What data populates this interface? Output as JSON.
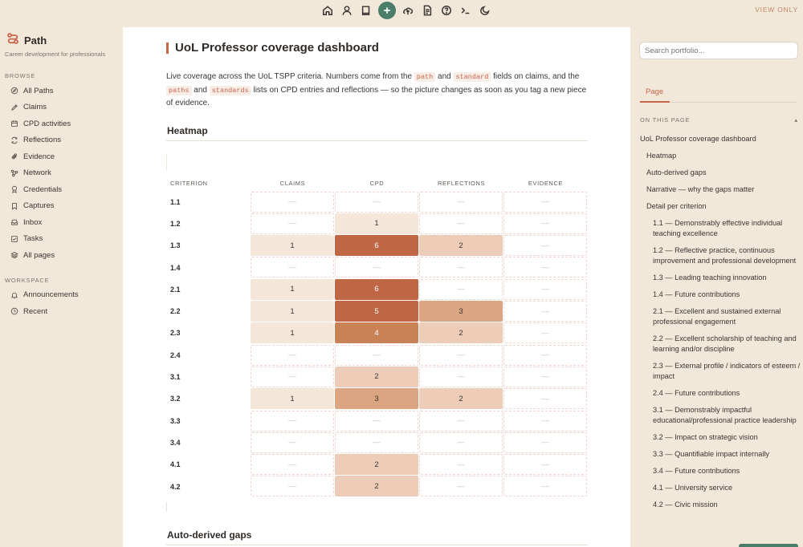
{
  "topbar": {
    "icons": [
      "home-icon",
      "user-icon",
      "book-icon",
      "plus-icon",
      "upload-icon",
      "document-icon",
      "help-icon",
      "terminal-icon",
      "moon-icon"
    ],
    "view_only": "VIEW ONLY"
  },
  "brand": {
    "name": "Path",
    "subtitle": "Career development for professionals"
  },
  "sidebar": {
    "browse_heading": "BROWSE",
    "browse": [
      {
        "label": "All Paths",
        "icon": "compass-icon"
      },
      {
        "label": "Claims",
        "icon": "pen-icon"
      },
      {
        "label": "CPD activities",
        "icon": "calendar-icon"
      },
      {
        "label": "Reflections",
        "icon": "refresh-icon"
      },
      {
        "label": "Evidence",
        "icon": "paperclip-icon"
      },
      {
        "label": "Network",
        "icon": "network-icon"
      },
      {
        "label": "Credentials",
        "icon": "award-icon"
      },
      {
        "label": "Captures",
        "icon": "bookmark-icon"
      },
      {
        "label": "Inbox",
        "icon": "inbox-icon"
      },
      {
        "label": "Tasks",
        "icon": "checkbox-icon"
      },
      {
        "label": "All pages",
        "icon": "layers-icon"
      }
    ],
    "workspace_heading": "WORKSPACE",
    "workspace": [
      {
        "label": "Announcements",
        "icon": "bell-icon"
      },
      {
        "label": "Recent",
        "icon": "clock-icon"
      }
    ]
  },
  "main": {
    "title": "UoL Professor coverage dashboard",
    "intro": {
      "t1": "Live coverage across the UoL TSPP criteria. Numbers come from the ",
      "c1": "path",
      "t2": " and ",
      "c2": "standard",
      "t3": " fields on claims, and the ",
      "c3": "paths",
      "t4": " and ",
      "c4": "standards",
      "t5": " lists on CPD entries and reflections — so the picture changes as soon as you tag a new piece of evidence."
    },
    "heatmap_heading": "Heatmap",
    "gaps_heading": "Auto-derived gaps",
    "heatmap": {
      "columns": [
        "CRITERION",
        "CLAIMS",
        "CPD",
        "REFLECTIONS",
        "EVIDENCE"
      ],
      "rows": [
        {
          "criterion": "1.1",
          "cells": [
            {
              "v": "—",
              "lvl": 0
            },
            {
              "v": "—",
              "lvl": 0
            },
            {
              "v": "—",
              "lvl": 0
            },
            {
              "v": "—",
              "lvl": 0
            }
          ]
        },
        {
          "criterion": "1.2",
          "cells": [
            {
              "v": "—",
              "lvl": 0
            },
            {
              "v": "1",
              "lvl": 1
            },
            {
              "v": "—",
              "lvl": 0
            },
            {
              "v": "—",
              "lvl": 0
            }
          ]
        },
        {
          "criterion": "1.3",
          "cells": [
            {
              "v": "1",
              "lvl": 1
            },
            {
              "v": "6",
              "lvl": 5
            },
            {
              "v": "2",
              "lvl": 2
            },
            {
              "v": "—",
              "lvl": 0
            }
          ]
        },
        {
          "criterion": "1.4",
          "cells": [
            {
              "v": "—",
              "lvl": 0
            },
            {
              "v": "—",
              "lvl": 0
            },
            {
              "v": "—",
              "lvl": 0
            },
            {
              "v": "—",
              "lvl": 0
            }
          ]
        },
        {
          "criterion": "2.1",
          "cells": [
            {
              "v": "1",
              "lvl": 1
            },
            {
              "v": "6",
              "lvl": 5
            },
            {
              "v": "—",
              "lvl": 0
            },
            {
              "v": "—",
              "lvl": 0
            }
          ]
        },
        {
          "criterion": "2.2",
          "cells": [
            {
              "v": "1",
              "lvl": 1
            },
            {
              "v": "5",
              "lvl": 5
            },
            {
              "v": "3",
              "lvl": 3
            },
            {
              "v": "—",
              "lvl": 0
            }
          ]
        },
        {
          "criterion": "2.3",
          "cells": [
            {
              "v": "1",
              "lvl": 1
            },
            {
              "v": "4",
              "lvl": 4
            },
            {
              "v": "2",
              "lvl": 2
            },
            {
              "v": "—",
              "lvl": 0
            }
          ]
        },
        {
          "criterion": "2.4",
          "cells": [
            {
              "v": "—",
              "lvl": 0
            },
            {
              "v": "—",
              "lvl": 0
            },
            {
              "v": "—",
              "lvl": 0
            },
            {
              "v": "—",
              "lvl": 0
            }
          ]
        },
        {
          "criterion": "3.1",
          "cells": [
            {
              "v": "—",
              "lvl": 0
            },
            {
              "v": "2",
              "lvl": 2
            },
            {
              "v": "—",
              "lvl": 0
            },
            {
              "v": "—",
              "lvl": 0
            }
          ]
        },
        {
          "criterion": "3.2",
          "cells": [
            {
              "v": "1",
              "lvl": 1
            },
            {
              "v": "3",
              "lvl": 3
            },
            {
              "v": "2",
              "lvl": 2
            },
            {
              "v": "—",
              "lvl": 0
            }
          ]
        },
        {
          "criterion": "3.3",
          "cells": [
            {
              "v": "—",
              "lvl": 0
            },
            {
              "v": "—",
              "lvl": 0
            },
            {
              "v": "—",
              "lvl": 0
            },
            {
              "v": "—",
              "lvl": 0
            }
          ]
        },
        {
          "criterion": "3.4",
          "cells": [
            {
              "v": "—",
              "lvl": 0
            },
            {
              "v": "—",
              "lvl": 0
            },
            {
              "v": "—",
              "lvl": 0
            },
            {
              "v": "—",
              "lvl": 0
            }
          ]
        },
        {
          "criterion": "4.1",
          "cells": [
            {
              "v": "—",
              "lvl": 0
            },
            {
              "v": "2",
              "lvl": 2
            },
            {
              "v": "—",
              "lvl": 0
            },
            {
              "v": "—",
              "lvl": 0
            }
          ]
        },
        {
          "criterion": "4.2",
          "cells": [
            {
              "v": "—",
              "lvl": 0
            },
            {
              "v": "2",
              "lvl": 2
            },
            {
              "v": "—",
              "lvl": 0
            },
            {
              "v": "—",
              "lvl": 0
            }
          ]
        }
      ]
    }
  },
  "right": {
    "search_placeholder": "Search portfolio...",
    "tab": "Page",
    "on_this_page": "ON THIS PAGE",
    "toc": [
      {
        "label": "UoL Professor coverage dashboard",
        "level": 0
      },
      {
        "label": "Heatmap",
        "level": 1
      },
      {
        "label": "Auto-derived gaps",
        "level": 1
      },
      {
        "label": "Narrative — why the gaps matter",
        "level": 1
      },
      {
        "label": "Detail per criterion",
        "level": 1
      },
      {
        "label": "1.1 — Demonstrably effective individual teaching excellence",
        "level": 2
      },
      {
        "label": "1.2 — Reflective practice, continuous improvement and professional development",
        "level": 2
      },
      {
        "label": "1.3 — Leading teaching innovation",
        "level": 2
      },
      {
        "label": "1.4 — Future contributions",
        "level": 2
      },
      {
        "label": "2.1 — Excellent and sustained external professional engagement",
        "level": 2
      },
      {
        "label": "2.2 — Excellent scholarship of teaching and learning and/or discipline",
        "level": 2
      },
      {
        "label": "2.3 — External profile / indicators of esteem / impact",
        "level": 2
      },
      {
        "label": "2.4 — Future contributions",
        "level": 2
      },
      {
        "label": "3.1 — Demonstrably impactful educational/professional practice leadership",
        "level": 2
      },
      {
        "label": "3.2 — Impact on strategic vision",
        "level": 2
      },
      {
        "label": "3.3 — Quantifiable impact internally",
        "level": 2
      },
      {
        "label": "3.4 — Future contributions",
        "level": 2
      },
      {
        "label": "4.1 — University service",
        "level": 2
      },
      {
        "label": "4.2 — Civic mission",
        "level": 2
      }
    ]
  },
  "colors": {
    "accent": "#c9654a",
    "brand_green": "#4a7d6a",
    "heat_levels": [
      "#ffffff",
      "#f5e6da",
      "#edcdb8",
      "#dca582",
      "#c98256",
      "#bf6645"
    ]
  }
}
